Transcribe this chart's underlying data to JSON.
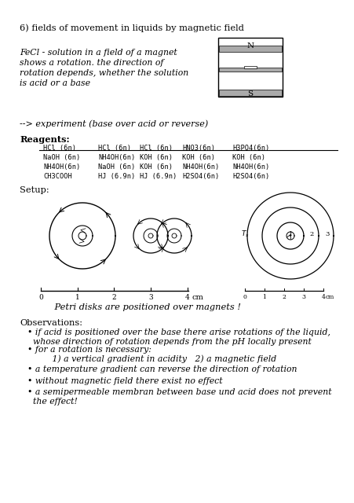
{
  "bg_color": "#ffffff",
  "title_line": "6) fields of movement in liquids by magnetic field",
  "para1_lines": [
    "FeCl - solution in a field of a magnet",
    "shows a rotation. the direction of",
    "rotation depends, whether the solution",
    "is acid or a base"
  ],
  "arrow_line": "--> experiment (base over acid or reverse)",
  "reagents_header": "Reagents:",
  "reagents_col1": [
    "HCl (6n)",
    "NaOH (6n)",
    "NH4OH(6n)",
    "CH3COOH"
  ],
  "reagents_col2": [
    "HCl (6n)",
    "NH4OH(6n)",
    "NaOH (6n)",
    "HJ (6.9n)"
  ],
  "reagents_col3": [
    "HCl (6n)",
    "KOH (6n)",
    "KOH (6n)",
    "HJ (6.9n)"
  ],
  "reagents_col4": [
    "HNO3(6n)",
    "KOH (6n)",
    "NH4OH(6n)",
    "H2SO4(6n)"
  ],
  "reagents_col5": [
    "H3PO4(6n)",
    "KOH (6n)",
    "NH4OH(6n)",
    "H2SO4(6n)"
  ],
  "setup_label": "Setup:",
  "petri_label": "    Petri disks are positioned over magnets !",
  "observations_header": "Observations:",
  "obs_bullets": [
    " if acid is positioned over the base there arise rotations of the liquid,\n  whose direction of rotation depends from the pH locally present",
    " for a rotation is necessary:\n         1) a vertical gradient in acidity   2) a magnetic field",
    " a temperature gradient can reverse the direction of rotation",
    " without magnetic field there exist no effect",
    " a semipermeable membran between base und acid does not prevent\n  the effect!"
  ],
  "magnet_N_label": "N",
  "magnet_S_label": "S"
}
